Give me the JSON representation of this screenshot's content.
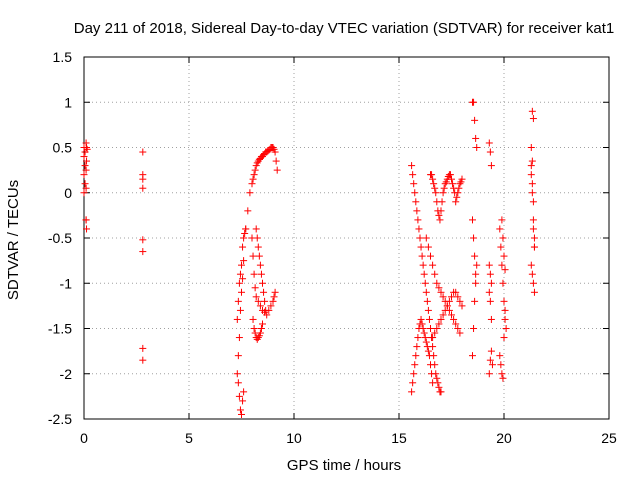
{
  "chart_data": {
    "type": "scatter",
    "title": "Day 211 of 2018, Sidereal Day-to-day VTEC variation (SDTVAR) for receiver kat1",
    "xlabel": "GPS time / hours",
    "ylabel": "SDTVAR / TECUs",
    "xlim": [
      0,
      25
    ],
    "ylim": [
      -2.5,
      1.5
    ],
    "xticks": [
      "0",
      "5",
      "10",
      "15",
      "20",
      "25"
    ],
    "yticks": [
      "-2.5",
      "-2",
      "-1.5",
      "-1",
      "-0.5",
      "0",
      "0.5",
      "1",
      "1.5"
    ],
    "grid": true,
    "marker": "plus",
    "color": "#ff0000",
    "series": [
      {
        "x": [
          0.0,
          0.0,
          0.0,
          0.0,
          0.05,
          0.05,
          0.05,
          0.1,
          0.1,
          0.1,
          0.1,
          0.1,
          0.12,
          0.12,
          0.12,
          0.15,
          2.8,
          2.8,
          2.8,
          2.8,
          2.8,
          2.8,
          2.8,
          2.8,
          7.3,
          7.35,
          7.4,
          7.45,
          7.5,
          7.55,
          7.6,
          7.65,
          7.7,
          7.3,
          7.35,
          7.4,
          7.45,
          7.5,
          7.55,
          7.6,
          7.35,
          7.4,
          7.45,
          7.5,
          7.55,
          7.6,
          7.7,
          7.8,
          7.9,
          8.0,
          8.05,
          8.1,
          8.15,
          8.2,
          8.25,
          8.3,
          8.35,
          8.4,
          8.45,
          8.5,
          8.55,
          8.6,
          8.65,
          8.7,
          8.75,
          8.8,
          8.85,
          8.9,
          8.95,
          9.0,
          9.05,
          9.1,
          9.15,
          9.2,
          8.0,
          8.05,
          8.1,
          8.15,
          8.2,
          8.3,
          8.4,
          8.5,
          8.6,
          8.7,
          8.8,
          8.9,
          9.0,
          9.05,
          9.1,
          8.2,
          8.25,
          8.3,
          8.35,
          8.4,
          8.45,
          8.5,
          8.55,
          8.6,
          8.65,
          8.05,
          8.1,
          8.15,
          8.2,
          8.25,
          8.3,
          8.35,
          8.4,
          8.45,
          8.5,
          15.6,
          15.65,
          15.7,
          15.75,
          15.8,
          15.85,
          15.9,
          15.95,
          16.0,
          16.05,
          16.1,
          16.15,
          16.2,
          16.25,
          16.3,
          16.35,
          16.4,
          16.45,
          16.5,
          16.55,
          16.6,
          16.65,
          16.7,
          16.75,
          16.8,
          16.85,
          16.9,
          16.95,
          17.0,
          15.6,
          15.65,
          15.7,
          15.75,
          15.8,
          15.85,
          15.9,
          15.95,
          16.0,
          16.05,
          16.1,
          16.15,
          16.2,
          16.25,
          16.3,
          16.35,
          16.4,
          16.45,
          16.5,
          16.55,
          16.6,
          16.5,
          16.55,
          16.6,
          16.65,
          16.7,
          16.75,
          16.8,
          16.85,
          16.9,
          16.95,
          17.0,
          17.05,
          17.1,
          17.15,
          17.2,
          17.25,
          17.3,
          17.35,
          17.4,
          17.45,
          17.5,
          17.55,
          17.6,
          17.65,
          17.7,
          17.75,
          17.8,
          17.85,
          17.9,
          17.95,
          18.0,
          16.6,
          16.7,
          16.8,
          16.9,
          17.0,
          17.1,
          17.2,
          17.3,
          17.4,
          17.5,
          17.6,
          17.7,
          17.8,
          17.9,
          18.0,
          16.3,
          16.4,
          16.5,
          16.6,
          16.7,
          16.8,
          16.9,
          17.0,
          17.1,
          17.2,
          17.3,
          17.4,
          17.5,
          17.6,
          17.7,
          17.8,
          17.9,
          18.5,
          18.55,
          18.6,
          18.65,
          18.7,
          18.5,
          18.55,
          18.6,
          18.65,
          18.5,
          18.55,
          18.6,
          18.65,
          18.7,
          19.3,
          19.35,
          19.4,
          19.3,
          19.35,
          19.4,
          19.3,
          19.35,
          19.4,
          19.45,
          19.3,
          19.35,
          19.4,
          19.8,
          19.85,
          19.9,
          19.95,
          20.0,
          20.05,
          20.1,
          19.8,
          19.85,
          19.9,
          19.95,
          20.0,
          20.05,
          19.9,
          19.95,
          20.0,
          20.05,
          21.3,
          21.3,
          21.35,
          21.35,
          21.4,
          21.4,
          21.45,
          21.45,
          21.3,
          21.35,
          21.4,
          21.45,
          21.3,
          21.35,
          21.4,
          21.45,
          21.35,
          21.4
        ],
        "y": [
          0.5,
          0.4,
          0.2,
          0.0,
          0.45,
          0.3,
          0.1,
          -0.3,
          -0.3,
          0.05,
          0.25,
          0.55,
          -0.4,
          0.35,
          0.5,
          0.48,
          0.45,
          0.2,
          0.15,
          0.05,
          -0.52,
          -0.65,
          -1.72,
          -1.85,
          -1.4,
          -1.2,
          -1.0,
          -0.9,
          -0.8,
          -0.6,
          -0.5,
          -0.45,
          -0.4,
          -2.0,
          -2.1,
          -2.25,
          -2.4,
          -2.45,
          -2.3,
          -2.2,
          -1.8,
          -1.6,
          -1.3,
          -1.1,
          -0.95,
          -0.75,
          -0.4,
          -0.2,
          0.0,
          0.1,
          0.15,
          0.2,
          0.25,
          0.3,
          0.33,
          0.35,
          0.37,
          0.38,
          0.4,
          0.4,
          0.42,
          0.43,
          0.45,
          0.45,
          0.46,
          0.47,
          0.48,
          0.5,
          0.5,
          0.5,
          0.48,
          0.45,
          0.35,
          0.25,
          -0.5,
          -0.7,
          -0.9,
          -1.05,
          -1.15,
          -1.2,
          -1.25,
          -1.3,
          -1.32,
          -1.35,
          -1.3,
          -1.25,
          -1.2,
          -1.15,
          -1.1,
          -0.4,
          -0.5,
          -0.6,
          -0.7,
          -0.8,
          -0.9,
          -1.0,
          -1.1,
          -1.2,
          -1.3,
          -1.4,
          -1.5,
          -1.55,
          -1.6,
          -1.62,
          -1.6,
          -1.58,
          -1.55,
          -1.5,
          -1.45,
          0.3,
          0.2,
          0.1,
          0.0,
          -0.1,
          -0.2,
          -0.3,
          -0.4,
          -0.5,
          -0.6,
          -0.7,
          -0.8,
          -0.9,
          -1.0,
          -1.1,
          -1.2,
          -1.3,
          -1.4,
          -1.5,
          -1.6,
          -1.7,
          -1.8,
          -1.9,
          -2.0,
          -2.05,
          -2.1,
          -2.15,
          -2.2,
          -2.2,
          -2.2,
          -2.1,
          -2.0,
          -1.9,
          -1.8,
          -1.7,
          -1.6,
          -1.5,
          -1.45,
          -1.4,
          -1.45,
          -1.5,
          -1.55,
          -1.6,
          -1.65,
          -1.7,
          -1.75,
          -1.8,
          -1.9,
          -2.0,
          -2.1,
          0.2,
          0.2,
          0.15,
          0.1,
          0.05,
          0.0,
          -0.1,
          -0.2,
          -0.25,
          -0.3,
          -0.2,
          -0.1,
          0.0,
          0.05,
          0.1,
          0.12,
          0.15,
          0.18,
          0.2,
          0.2,
          0.15,
          0.1,
          0.05,
          0.0,
          -0.1,
          -0.05,
          0.0,
          0.05,
          0.1,
          0.12,
          0.15,
          -1.6,
          -1.55,
          -1.5,
          -1.45,
          -1.4,
          -1.35,
          -1.3,
          -1.25,
          -1.2,
          -1.15,
          -1.1,
          -1.1,
          -1.15,
          -1.2,
          -1.25,
          -0.5,
          -0.6,
          -0.7,
          -0.8,
          -0.9,
          -1.0,
          -1.05,
          -1.1,
          -1.15,
          -1.2,
          -1.25,
          -1.3,
          -1.35,
          -1.4,
          -1.45,
          -1.5,
          -1.55,
          1.0,
          1.0,
          0.8,
          0.6,
          0.5,
          -0.3,
          -0.5,
          -0.7,
          -0.9,
          -1.8,
          -1.5,
          -1.2,
          -1.0,
          -0.8,
          0.55,
          0.45,
          0.3,
          -0.8,
          -0.9,
          -1.0,
          -1.1,
          -1.2,
          -1.4,
          -1.9,
          -2.0,
          -1.85,
          -1.75,
          -0.4,
          -0.6,
          -0.8,
          -1.0,
          -1.2,
          -1.3,
          -1.5,
          -1.8,
          -1.9,
          -2.0,
          -2.05,
          -1.6,
          -1.4,
          -0.3,
          -0.5,
          -0.7,
          -0.85,
          0.5,
          0.3,
          0.1,
          0.0,
          -0.1,
          -0.3,
          -0.5,
          -0.6,
          -0.8,
          -0.9,
          -1.0,
          -1.1,
          0.2,
          0.35,
          -0.4,
          -0.6,
          0.9,
          0.82
        ]
      }
    ]
  }
}
